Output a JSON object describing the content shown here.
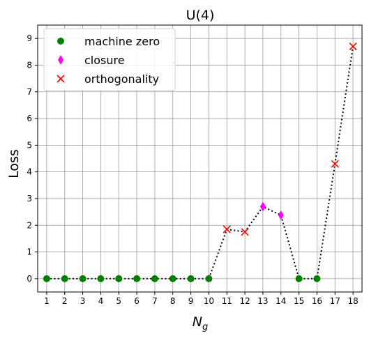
{
  "chart_data": {
    "type": "scatter",
    "title": "U(4)",
    "xlabel": "N_g",
    "ylabel": "Loss",
    "xlim": [
      0.5,
      18.5
    ],
    "ylim": [
      -0.5,
      9.5
    ],
    "x_ticks": [
      1,
      2,
      3,
      4,
      5,
      6,
      7,
      8,
      9,
      10,
      11,
      12,
      13,
      14,
      15,
      16,
      17,
      18
    ],
    "y_ticks": [
      0,
      1,
      2,
      3,
      4,
      5,
      6,
      7,
      8,
      9
    ],
    "grid": true,
    "legend_position": "top-left",
    "line": {
      "style": "dotted",
      "color": "#000000",
      "x": [
        1,
        2,
        3,
        4,
        5,
        6,
        7,
        8,
        9,
        10,
        11,
        12,
        13,
        14,
        15,
        16,
        17,
        18
      ],
      "y": [
        0,
        0,
        0,
        0,
        0,
        0,
        0,
        0,
        0,
        0,
        1.85,
        1.75,
        2.7,
        2.38,
        0,
        0,
        4.3,
        8.7
      ]
    },
    "series": [
      {
        "name": "machine zero",
        "marker": "circle",
        "color": "#008000",
        "x": [
          1,
          2,
          3,
          4,
          5,
          6,
          7,
          8,
          9,
          10,
          15,
          16
        ],
        "y": [
          0,
          0,
          0,
          0,
          0,
          0,
          0,
          0,
          0,
          0,
          0,
          0
        ]
      },
      {
        "name": "closure",
        "marker": "thin_diamond",
        "color": "#ff00ff",
        "x": [
          13,
          14
        ],
        "y": [
          2.7,
          2.38
        ]
      },
      {
        "name": "orthogonality",
        "marker": "x",
        "color": "#ff0000",
        "x": [
          11,
          12,
          17,
          18
        ],
        "y": [
          1.85,
          1.75,
          4.3,
          8.7
        ]
      }
    ]
  }
}
